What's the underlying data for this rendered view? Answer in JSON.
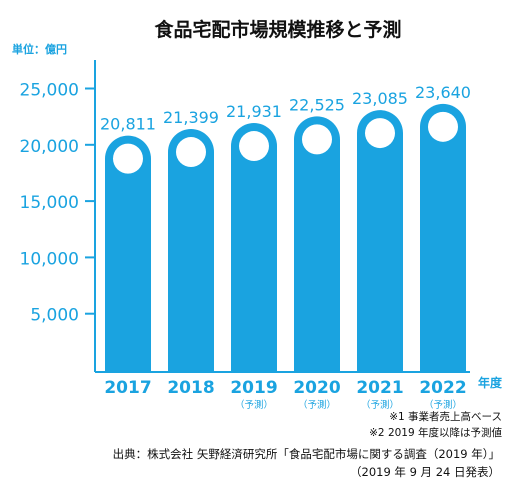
{
  "chart_data": {
    "type": "bar",
    "title": "食品宅配市場規模推移と予測",
    "unit_label": "単位：億円",
    "x_unit_label": "年度",
    "categories": [
      "2017",
      "2018",
      "2019",
      "2020",
      "2021",
      "2022"
    ],
    "category_notes": [
      "",
      "",
      "（予測）",
      "（予測）",
      "（予測）",
      "（予測）"
    ],
    "values": [
      20811,
      21399,
      21931,
      22525,
      23085,
      23640
    ],
    "value_labels": [
      "20,811",
      "21,399",
      "21,931",
      "22,525",
      "23,085",
      "23,640"
    ],
    "yticks": [
      5000,
      10000,
      15000,
      20000,
      25000
    ],
    "ytick_labels": [
      "5,000",
      "10,000",
      "15,000",
      "20,000",
      "25,000"
    ],
    "ylim": [
      0,
      25000
    ],
    "grid": false,
    "bar_color": "#1aa3e0",
    "text_color": "#1aa3e0"
  },
  "notes": {
    "note1": "※1 事業者売上高ベース",
    "note2": "※2 2019 年度以降は予測値"
  },
  "source": {
    "line1": "出典：株式会社 矢野経済研究所「食品宅配市場に関する調査（2019 年）」",
    "line2": "（2019 年 9 月 24 日発表）"
  }
}
